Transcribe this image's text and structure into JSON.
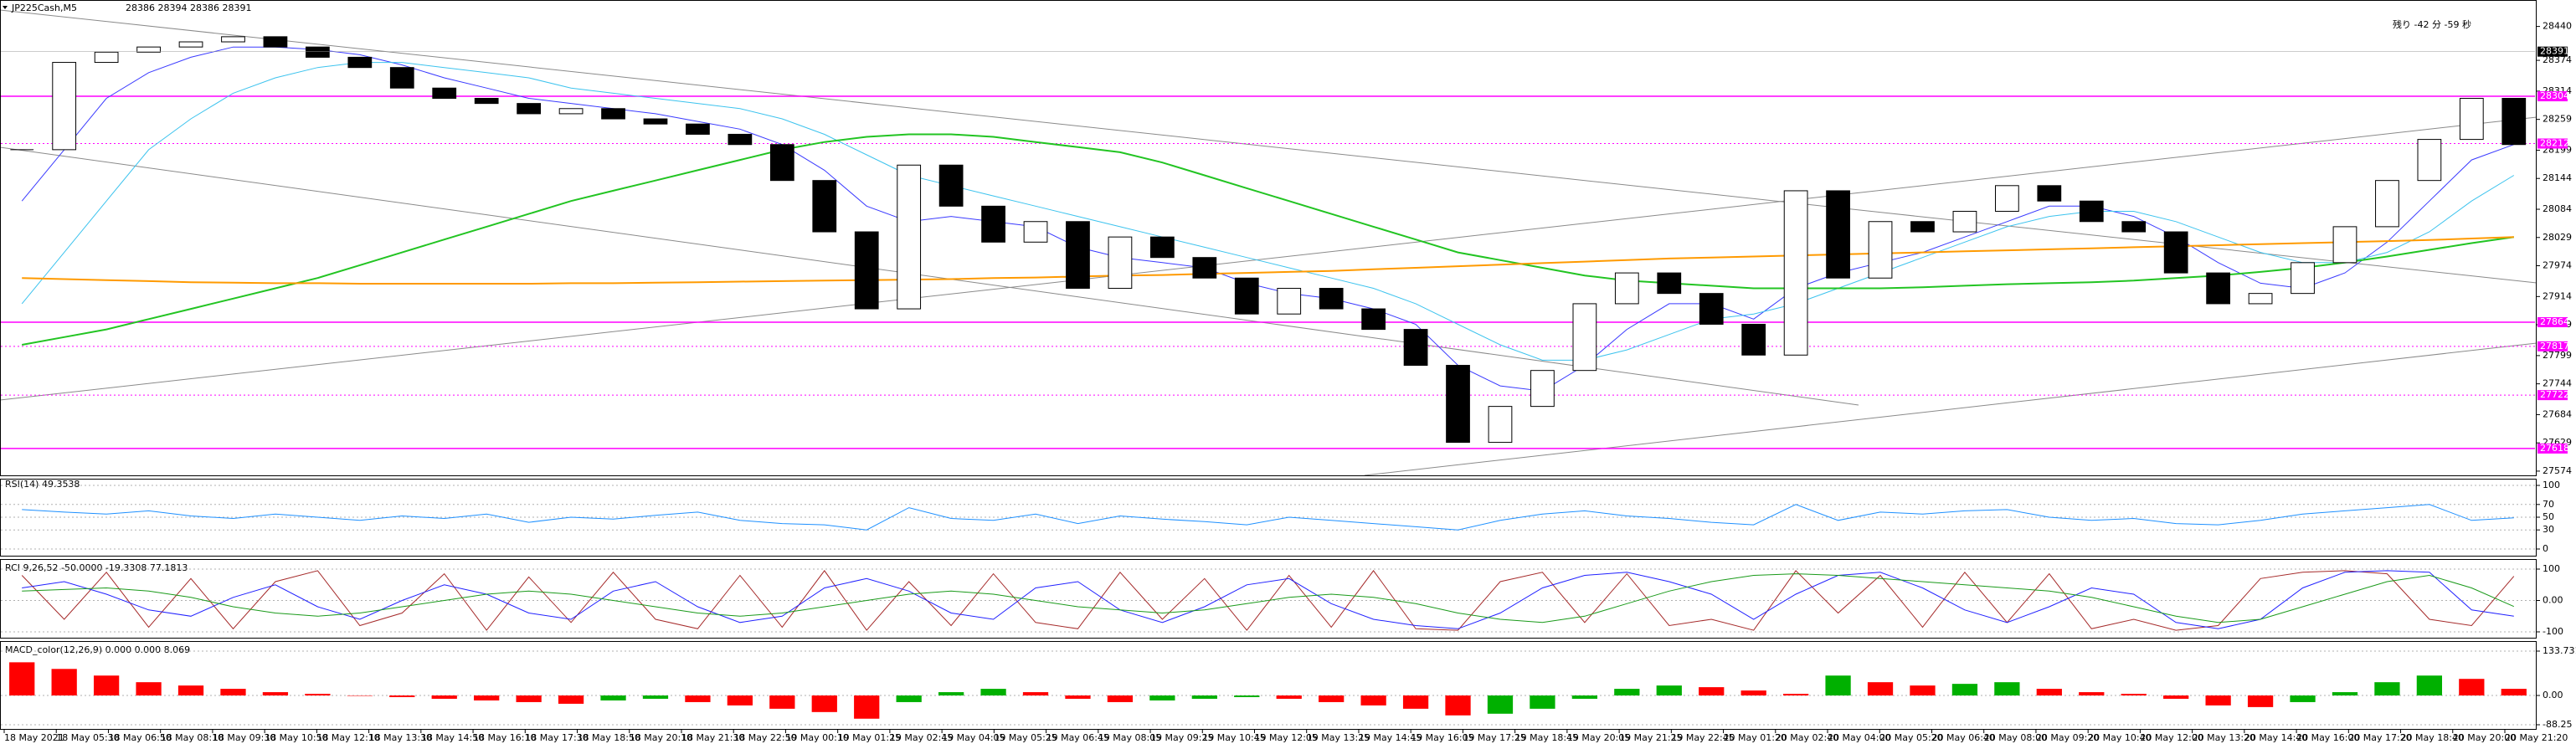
{
  "chart_data": [
    {
      "type": "candlestick",
      "title": "JP225Cash,M5",
      "subtitle": "28386 28394 28386 28391",
      "countdown": "残り -42 分 -59 秒",
      "current_price": 28391,
      "candle_color": "#000000",
      "values": [
        28200,
        28370,
        28390,
        28400,
        28410,
        28420,
        28400,
        28380,
        28360,
        28320,
        28300,
        28290,
        28270,
        28280,
        28260,
        28250,
        28230,
        28210,
        28140,
        28040,
        27890,
        28170,
        28090,
        28020,
        28060,
        27930,
        28030,
        27990,
        27950,
        27880,
        27930,
        27890,
        27850,
        27780,
        27630,
        27700,
        27770,
        27900,
        27960,
        27920,
        27860,
        27800,
        28120,
        27950,
        28060,
        28040,
        28080,
        28130,
        28100,
        28060,
        28040,
        27960,
        27900,
        27920,
        27980,
        28050,
        28140,
        28220,
        28300,
        28210
      ],
      "series": [
        {
          "color": "#3a3aff",
          "width": 1,
          "values": [
            28100,
            28200,
            28300,
            28350,
            28380,
            28400,
            28400,
            28395,
            28385,
            28365,
            28340,
            28320,
            28300,
            28290,
            28280,
            28270,
            28255,
            28240,
            28210,
            28160,
            28090,
            28060,
            28070,
            28060,
            28050,
            28010,
            27990,
            27980,
            27970,
            27940,
            27920,
            27910,
            27890,
            27860,
            27780,
            27740,
            27730,
            27780,
            27850,
            27900,
            27900,
            27870,
            27930,
            27960,
            27980,
            28000,
            28030,
            28060,
            28090,
            28090,
            28070,
            28030,
            27980,
            27940,
            27930,
            27960,
            28020,
            28100,
            28180,
            28210
          ]
        },
        {
          "color": "#3cc3ee",
          "width": 1,
          "values": [
            27900,
            28000,
            28100,
            28200,
            28260,
            28310,
            28340,
            28360,
            28370,
            28370,
            28360,
            28350,
            28340,
            28320,
            28310,
            28300,
            28290,
            28280,
            28260,
            28230,
            28190,
            28150,
            28130,
            28110,
            28090,
            28070,
            28050,
            28030,
            28010,
            27990,
            27970,
            27950,
            27930,
            27900,
            27860,
            27820,
            27790,
            27790,
            27810,
            27840,
            27870,
            27880,
            27900,
            27930,
            27960,
            27990,
            28020,
            28050,
            28070,
            28080,
            28080,
            28060,
            28030,
            28000,
            27980,
            27980,
            28000,
            28040,
            28100,
            28150
          ]
        },
        {
          "color": "#22c422",
          "width": 2,
          "values": [
            27820,
            27835,
            27850,
            27870,
            27890,
            27910,
            27930,
            27950,
            27975,
            28000,
            28025,
            28050,
            28075,
            28100,
            28120,
            28140,
            28160,
            28180,
            28200,
            28215,
            28225,
            28230,
            28230,
            28225,
            28215,
            28205,
            28195,
            28175,
            28150,
            28125,
            28100,
            28075,
            28050,
            28025,
            28000,
            27985,
            27970,
            27955,
            27945,
            27940,
            27935,
            27930,
            27930,
            27930,
            27930,
            27932,
            27935,
            27938,
            27940,
            27942,
            27945,
            27950,
            27955,
            27962,
            27970,
            27980,
            27992,
            28005,
            28018,
            28030
          ]
        },
        {
          "color": "#ff9a00",
          "width": 2,
          "values": [
            27950,
            27948,
            27946,
            27944,
            27942,
            27941,
            27940,
            27940,
            27939,
            27939,
            27939,
            27939,
            27939,
            27940,
            27940,
            27941,
            27942,
            27943,
            27944,
            27945,
            27946,
            27947,
            27948,
            27950,
            27951,
            27953,
            27955,
            27956,
            27958,
            27960,
            27962,
            27964,
            27967,
            27970,
            27973,
            27976,
            27979,
            27982,
            27985,
            27988,
            27990,
            27992,
            27994,
            27996,
            27998,
            28000,
            28002,
            28004,
            28006,
            28008,
            28010,
            28012,
            28014,
            28016,
            28018,
            28020,
            28022,
            28024,
            28027,
            28030
          ]
        }
      ],
      "levels": [
        {
          "value": 28304,
          "color": "#ff00ff",
          "style": "solid"
        },
        {
          "value": 28212,
          "color": "#ff00ff",
          "style": "dotted"
        },
        {
          "value": 27864,
          "color": "#ff00ff",
          "style": "solid"
        },
        {
          "value": 27817,
          "color": "#ff00ff",
          "style": "dotted"
        },
        {
          "value": 27722,
          "color": "#ff00ff",
          "style": "dotted"
        },
        {
          "value": 27618,
          "color": "#ff00ff",
          "style": "solid"
        }
      ],
      "ylim": [
        27569,
        28485
      ],
      "yticks": [
        28440,
        28374,
        28314,
        28259,
        28199,
        28144,
        28084,
        28029,
        27974,
        27914,
        27859,
        27799,
        27744,
        27684,
        27629,
        27574
      ],
      "grid": false,
      "x_labels": [
        "18 May 2021",
        "18 May 05:30",
        "18 May 06:50",
        "18 May 08:10",
        "18 May 09:30",
        "18 May 10:50",
        "18 May 12:10",
        "18 May 13:30",
        "18 May 14:50",
        "18 May 16:10",
        "18 May 17:30",
        "18 May 18:50",
        "18 May 20:10",
        "18 May 21:30",
        "18 May 22:50",
        "19 May 00:10",
        "19 May 01:25",
        "19 May 02:45",
        "19 May 04:05",
        "19 May 05:25",
        "19 May 06:45",
        "19 May 08:05",
        "19 May 09:25",
        "19 May 10:45",
        "19 May 12:05",
        "19 May 13:25",
        "19 May 14:45",
        "19 May 16:05",
        "19 May 17:25",
        "19 May 18:45",
        "19 May 20:05",
        "19 May 21:25",
        "19 May 22:45",
        "20 May 01:20",
        "20 May 02:40",
        "20 May 04:00",
        "20 May 05:20",
        "20 May 06:40",
        "20 May 08:00",
        "20 May 09:20",
        "20 May 10:40",
        "20 May 12:00",
        "20 May 13:20",
        "20 May 14:40",
        "20 May 16:00",
        "20 May 17:20",
        "20 May 18:40",
        "20 May 20:00",
        "20 May 21:20"
      ]
    },
    {
      "type": "line",
      "title": "RSI(14) 49.3538",
      "ylim": [
        0,
        100
      ],
      "yticks": [
        0,
        30,
        50,
        70,
        100
      ],
      "grid": true,
      "series": [
        {
          "color": "#1e90ff",
          "width": 1,
          "values": [
            62,
            58,
            55,
            60,
            52,
            48,
            55,
            50,
            45,
            52,
            48,
            55,
            42,
            50,
            47,
            53,
            58,
            45,
            40,
            38,
            30,
            65,
            48,
            45,
            55,
            40,
            52,
            47,
            43,
            38,
            50,
            45,
            40,
            35,
            30,
            45,
            55,
            60,
            52,
            48,
            42,
            38,
            70,
            45,
            58,
            55,
            60,
            62,
            50,
            45,
            48,
            40,
            38,
            45,
            55,
            60,
            65,
            70,
            45,
            49
          ]
        }
      ]
    },
    {
      "type": "line",
      "title": "RCI 9,26,52 -50.0000 -19.3308 77.1813",
      "ylim": [
        -100,
        100
      ],
      "yticks": [
        {
          "value": -100,
          "label": "-100"
        },
        {
          "value": 0,
          "label": "0.00"
        },
        {
          "value": 100,
          "label": "100"
        }
      ],
      "grid": true,
      "series": [
        {
          "color": "#a52a2a",
          "width": 1,
          "values": [
            80,
            -60,
            90,
            -85,
            70,
            -90,
            60,
            95,
            -80,
            -40,
            85,
            -95,
            75,
            -70,
            90,
            -60,
            -90,
            80,
            -85,
            95,
            -95,
            60,
            -80,
            85,
            -70,
            -90,
            90,
            -60,
            70,
            -95,
            80,
            -85,
            95,
            -90,
            -95,
            60,
            90,
            -70,
            85,
            -80,
            -60,
            -95,
            95,
            -40,
            80,
            -85,
            90,
            -70,
            85,
            -90,
            -60,
            -95,
            -80,
            70,
            90,
            95,
            85,
            -60,
            -80,
            77.1813
          ]
        },
        {
          "color": "#2020ff",
          "width": 1,
          "values": [
            40,
            60,
            20,
            -30,
            -50,
            10,
            50,
            -20,
            -60,
            0,
            50,
            20,
            -40,
            -60,
            30,
            60,
            -20,
            -70,
            -50,
            40,
            70,
            30,
            -40,
            -60,
            40,
            60,
            -30,
            -70,
            -20,
            50,
            70,
            -10,
            -60,
            -80,
            -90,
            -40,
            40,
            80,
            90,
            60,
            20,
            -60,
            20,
            80,
            90,
            40,
            -30,
            -70,
            -20,
            40,
            20,
            -70,
            -90,
            -60,
            40,
            90,
            95,
            90,
            -30,
            -50
          ]
        },
        {
          "color": "#1a9a1a",
          "width": 1,
          "values": [
            30,
            35,
            40,
            30,
            10,
            -20,
            -40,
            -50,
            -40,
            -20,
            0,
            20,
            30,
            20,
            0,
            -20,
            -40,
            -50,
            -40,
            -20,
            0,
            20,
            30,
            20,
            0,
            -20,
            -30,
            -40,
            -30,
            -10,
            10,
            20,
            10,
            -10,
            -40,
            -60,
            -70,
            -50,
            -10,
            30,
            60,
            80,
            85,
            80,
            70,
            60,
            50,
            40,
            30,
            10,
            -20,
            -50,
            -70,
            -60,
            -20,
            20,
            60,
            80,
            40,
            -19.3308
          ]
        }
      ]
    },
    {
      "type": "bar",
      "title": "MACD_color(12,26,9) 0.000 0.000 8.069",
      "ylim": [
        -88.25,
        133.731
      ],
      "yticks": [
        {
          "value": -88.25,
          "label": "-88.25"
        },
        {
          "value": 0,
          "label": "0.00"
        },
        133.731
      ],
      "grid": true,
      "up_color": "#00b000",
      "down_color": "#ff0000",
      "values": [
        100,
        80,
        60,
        40,
        30,
        20,
        10,
        5,
        0,
        -5,
        -10,
        -15,
        -20,
        -25,
        -15,
        -10,
        -20,
        -30,
        -40,
        -50,
        -70,
        -20,
        10,
        20,
        10,
        -10,
        -20,
        -15,
        -10,
        -5,
        -10,
        -20,
        -30,
        -40,
        -60,
        -55,
        -40,
        -10,
        20,
        30,
        25,
        15,
        5,
        60,
        40,
        30,
        35,
        40,
        20,
        10,
        5,
        -10,
        -30,
        -35,
        -20,
        10,
        40,
        60,
        50,
        20
      ]
    }
  ]
}
